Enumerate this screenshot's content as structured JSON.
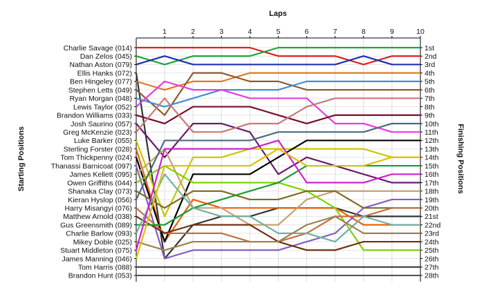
{
  "chart_data": {
    "type": "line",
    "title": "Laps",
    "ylabel_left": "Starting Positions",
    "ylabel_right": "Finishing Positions",
    "laps": [
      0,
      1,
      2,
      3,
      4,
      5,
      6,
      7,
      8,
      9,
      10
    ],
    "lap_labels": [
      "1",
      "2",
      "3",
      "4",
      "5",
      "6",
      "7",
      "8",
      "9",
      "10"
    ],
    "finish_labels": [
      "1st",
      "2nd",
      "3rd",
      "4th",
      "5th",
      "6th",
      "7th",
      "8th",
      "9th",
      "10th",
      "11th",
      "12th",
      "13th",
      "14th",
      "15th",
      "16th",
      "17th",
      "18th",
      "19th",
      "20th",
      "21st",
      "22nd",
      "23rd",
      "24th",
      "25th",
      "26th",
      "27th",
      "28th"
    ],
    "grid": true,
    "series": [
      {
        "name": "Charlie Savage (014)",
        "color": "#dd1f1f",
        "positions": [
          1,
          1,
          1,
          1,
          1,
          2,
          2,
          2,
          3,
          2,
          2
        ]
      },
      {
        "name": "Dan Zelos (045)",
        "color": "#1fa33a",
        "positions": [
          2,
          3,
          2,
          2,
          2,
          1,
          1,
          1,
          1,
          1,
          1
        ]
      },
      {
        "name": "Nathan Aston (079)",
        "color": "#1a2db3",
        "positions": [
          3,
          2,
          3,
          3,
          3,
          3,
          3,
          3,
          2,
          3,
          3
        ]
      },
      {
        "name": "Ellis Hanks (072)",
        "color": "#333333",
        "positions": [
          4,
          26,
          22,
          21,
          21,
          20,
          20,
          20,
          21,
          21,
          21
        ]
      },
      {
        "name": "Ben Hingeley (077)",
        "color": "#e07820",
        "positions": [
          5,
          6,
          5,
          5,
          4,
          4,
          4,
          4,
          4,
          4,
          4
        ]
      },
      {
        "name": "Stephen Letts (049)",
        "color": "#8b5a2b",
        "positions": [
          6,
          9,
          4,
          4,
          5,
          5,
          6,
          6,
          6,
          6,
          6
        ]
      },
      {
        "name": "Ryan Morgan (048)",
        "color": "#3f8fd8",
        "positions": [
          7,
          8,
          7,
          6,
          6,
          6,
          5,
          5,
          5,
          5,
          5
        ]
      },
      {
        "name": "Lewis Taylor (052)",
        "color": "#e63be0",
        "positions": [
          8,
          5,
          6,
          6,
          7,
          7,
          7,
          10,
          10,
          11,
          11
        ]
      },
      {
        "name": "Brandon Williams (033)",
        "color": "#7a0a2a",
        "positions": [
          9,
          10,
          8,
          8,
          8,
          9,
          10,
          9,
          9,
          9,
          9
        ]
      },
      {
        "name": "Josh Saurino (057)",
        "color": "#6a1a6a",
        "positions": [
          10,
          14,
          10,
          10,
          11,
          16,
          14,
          15,
          16,
          17,
          17
        ]
      },
      {
        "name": "Greg McKenzie (023)",
        "color": "#c87878",
        "positions": [
          11,
          7,
          11,
          11,
          10,
          10,
          8,
          7,
          7,
          7,
          7
        ]
      },
      {
        "name": "Luke Barker (055)",
        "color": "#c8c800",
        "positions": [
          12,
          21,
          14,
          14,
          13,
          13,
          13,
          13,
          13,
          14,
          14
        ]
      },
      {
        "name": "Sterling Forster (028)",
        "color": "#f06000",
        "positions": [
          13,
          24,
          19,
          20,
          20,
          20,
          20,
          20,
          22,
          22,
          22
        ]
      },
      {
        "name": "Tom Thickpenny (024)",
        "color": "#000000",
        "positions": [
          14,
          24,
          16,
          16,
          16,
          14,
          12,
          12,
          12,
          12,
          12
        ]
      },
      {
        "name": "Thanassi Barnicoat (097)",
        "color": "#8060c0",
        "positions": [
          15,
          26,
          25,
          25,
          25,
          25,
          24,
          23,
          20,
          19,
          19
        ]
      },
      {
        "name": "James Kellett (095)",
        "color": "#c8a070",
        "positions": [
          16,
          13,
          20,
          20,
          22,
          22,
          19,
          18,
          18,
          18,
          18
        ]
      },
      {
        "name": "Owen Griffiths (044)",
        "color": "#7fd000",
        "positions": [
          17,
          15,
          17,
          17,
          17,
          17,
          18,
          20,
          25,
          25,
          25
        ]
      },
      {
        "name": "Shanaka Clay (073)",
        "color": "#806a20",
        "positions": [
          18,
          20,
          18,
          18,
          19,
          19,
          18,
          18,
          20,
          20,
          20
        ]
      },
      {
        "name": "Kieran Hyslop (056)",
        "color": "#4a6a80",
        "positions": [
          19,
          12,
          12,
          12,
          12,
          11,
          11,
          11,
          11,
          10,
          10
        ]
      },
      {
        "name": "Harry Misangyi (076)",
        "color": "#c07040",
        "positions": [
          20,
          23,
          23,
          23,
          24,
          24,
          23,
          21,
          21,
          20,
          20
        ]
      },
      {
        "name": "Matthew Arnold (038)",
        "color": "#6e3010",
        "positions": [
          21,
          23,
          22,
          22,
          22,
          24,
          25,
          25,
          24,
          24,
          24
        ]
      },
      {
        "name": "Gus Greensmith (089)",
        "color": "#1a9a30",
        "positions": [
          22,
          22,
          20,
          19,
          18,
          17,
          15,
          15,
          15,
          15,
          15
        ]
      },
      {
        "name": "Charlie Barlow (093)",
        "color": "#70b0a0",
        "positions": [
          23,
          16,
          20,
          21,
          21,
          23,
          23,
          24,
          21,
          22,
          22
        ]
      },
      {
        "name": "Mikey Doble (025)",
        "color": "#a08050",
        "positions": [
          24,
          25,
          24,
          24,
          24,
          24,
          22,
          21,
          23,
          23,
          23
        ]
      },
      {
        "name": "Stuart Middleton (075)",
        "color": "#d020d0",
        "positions": [
          25,
          13,
          13,
          13,
          13,
          12,
          17,
          17,
          17,
          16,
          16
        ]
      },
      {
        "name": "James Manning (046)",
        "color": "#e0c000",
        "positions": [
          26,
          15,
          15,
          15,
          15,
          13,
          15,
          15,
          15,
          14,
          14
        ]
      },
      {
        "name": "Tom Harris (088)",
        "color": "#444444",
        "positions": [
          27,
          27,
          27,
          27,
          27,
          27,
          27,
          27,
          27,
          27,
          27
        ]
      },
      {
        "name": "Brandon Hunt (053)",
        "color": "#555555",
        "positions": [
          28,
          28,
          28,
          28,
          28,
          28,
          28,
          28,
          28,
          28,
          28
        ]
      }
    ]
  }
}
